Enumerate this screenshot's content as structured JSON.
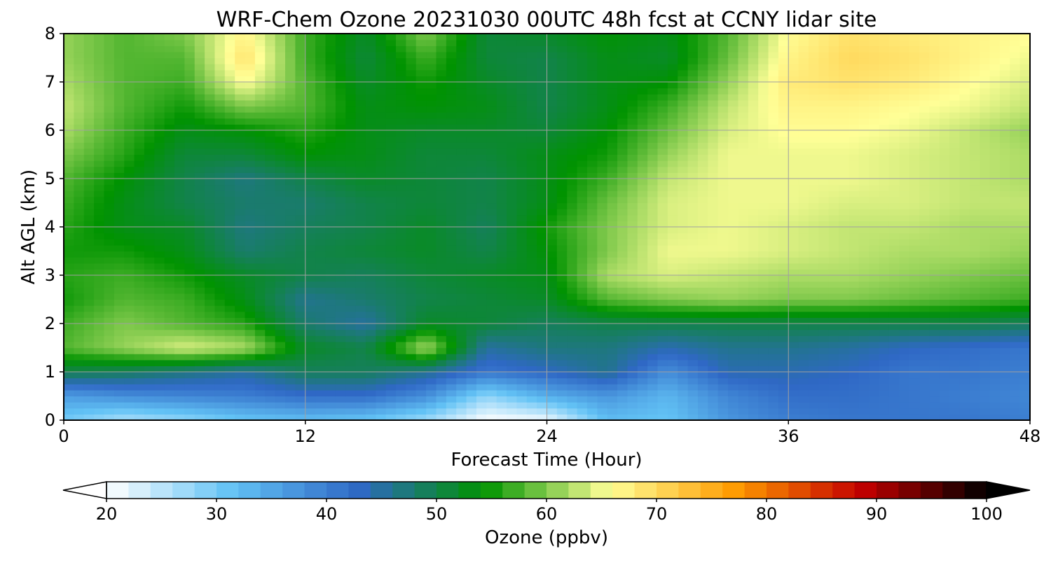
{
  "chart_data": {
    "type": "heatmap",
    "title": "WRF-Chem Ozone  20231030 00UTC 48h fcst at CCNY lidar site",
    "xlabel": "Forecast Time (Hour)",
    "ylabel": "Alt AGL (km)",
    "xlim": [
      0,
      48
    ],
    "ylim": [
      0,
      8
    ],
    "x_ticks": [
      0,
      12,
      24,
      36,
      48
    ],
    "y_ticks": [
      0,
      1,
      2,
      3,
      4,
      5,
      6,
      7,
      8
    ],
    "grid": true,
    "x": [
      0,
      3,
      6,
      9,
      12,
      15,
      18,
      21,
      24,
      27,
      30,
      33,
      36,
      39,
      42,
      45,
      48
    ],
    "y": [
      0,
      0.5,
      1,
      1.5,
      2,
      2.5,
      3,
      3.5,
      4,
      4.5,
      5,
      5.5,
      6,
      6.5,
      7,
      7.5,
      8
    ],
    "z": [
      [
        30,
        26,
        28,
        31,
        32,
        31,
        27,
        20,
        21,
        32,
        31,
        37,
        40,
        41,
        41,
        41,
        40
      ],
      [
        36,
        38,
        39,
        40,
        42,
        42,
        38,
        28,
        34,
        37,
        33,
        39,
        42,
        42,
        41,
        40,
        39
      ],
      [
        50,
        49,
        47,
        45,
        49,
        49,
        46,
        41,
        43,
        46,
        38,
        44,
        44,
        43,
        41,
        41,
        40
      ],
      [
        58,
        61,
        64,
        62,
        52,
        50,
        62,
        45,
        47,
        47,
        44,
        46,
        46,
        45,
        43,
        42,
        41
      ],
      [
        57,
        60,
        58,
        56,
        48,
        45,
        52,
        51,
        49,
        50,
        50,
        50,
        50,
        50,
        50,
        50,
        49
      ],
      [
        55,
        58,
        57,
        53,
        46,
        48,
        50,
        51,
        52,
        58,
        60,
        61,
        60,
        60,
        59,
        58,
        57
      ],
      [
        56,
        57,
        55,
        52,
        50,
        49,
        51,
        52,
        53,
        62,
        64,
        63,
        62,
        62,
        61,
        60,
        59
      ],
      [
        55,
        55,
        53,
        48,
        50,
        51,
        52,
        50,
        54,
        60,
        65,
        65,
        64,
        63,
        62,
        62,
        61
      ],
      [
        56,
        53,
        52,
        47,
        49,
        50,
        52,
        49,
        55,
        60,
        64,
        65,
        64,
        63,
        63,
        62,
        62
      ],
      [
        57,
        53,
        50,
        48,
        48,
        50,
        51,
        50,
        53,
        59,
        64,
        65,
        65,
        64,
        64,
        63,
        63
      ],
      [
        58,
        54,
        50,
        47,
        50,
        52,
        51,
        50,
        53,
        57,
        63,
        65,
        65,
        65,
        64,
        63,
        62
      ],
      [
        60,
        56,
        51,
        51,
        54,
        53,
        51,
        51,
        53,
        55,
        61,
        65,
        65,
        65,
        64,
        63,
        62
      ],
      [
        62,
        57,
        53,
        54,
        56,
        53,
        52,
        52,
        51,
        54,
        59,
        64,
        66,
        66,
        65,
        63,
        61
      ],
      [
        63,
        58,
        55,
        60,
        58,
        53,
        54,
        53,
        50,
        53,
        57,
        63,
        67,
        67,
        66,
        65,
        63
      ],
      [
        62,
        58,
        57,
        66,
        58,
        52,
        55,
        52,
        50,
        53,
        54,
        61,
        68,
        69,
        68,
        66,
        64
      ],
      [
        61,
        58,
        58,
        69,
        57,
        51,
        57,
        51,
        50,
        53,
        52,
        59,
        67,
        70,
        69,
        67,
        65
      ],
      [
        61,
        58,
        60,
        67,
        57,
        52,
        60,
        51,
        52,
        54,
        53,
        58,
        66,
        69,
        68,
        67,
        66
      ]
    ],
    "colorbar": {
      "label": "Ozone  (ppbv)",
      "min": 20,
      "max": 100,
      "ticks": [
        20,
        30,
        40,
        50,
        60,
        70,
        80,
        90,
        100
      ],
      "extend": "both",
      "orientation": "horizontal",
      "colors": [
        "#ffffff",
        "#62c2f5",
        "#2f68c5",
        "#009300",
        "#ffff97",
        "#ff9b00",
        "#c40000",
        "#000000"
      ]
    }
  }
}
